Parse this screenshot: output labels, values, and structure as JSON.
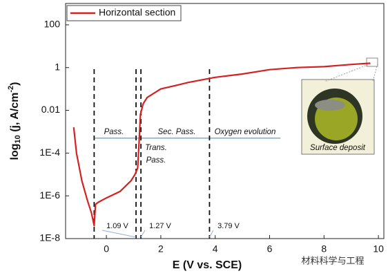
{
  "chart_data": {
    "type": "line",
    "xlabel": "E (V vs. SCE)",
    "ylabel": {
      "main": "log",
      "sub": "10",
      "mid": " (j, A/cm",
      "sup": "-2",
      "end": ")"
    },
    "xlim": [
      -1.5,
      10.2
    ],
    "xticks": [
      0,
      2,
      4,
      6,
      8,
      10
    ],
    "ylim": [
      1e-08,
      1000
    ],
    "log_y": true,
    "yticks": [
      {
        "value": 1e-08,
        "label": "1E-8"
      },
      {
        "value": 1e-06,
        "label": "1E-6"
      },
      {
        "value": 0.0001,
        "label": "1E-4"
      },
      0.01,
      1,
      100
    ],
    "legend": "top-left",
    "x": [
      -1.2,
      -1.1,
      -0.9,
      -0.7,
      -0.55,
      -0.45,
      -0.4,
      -0.3,
      0,
      0.5,
      0.9,
      1.05,
      1.15,
      1.2,
      1.25,
      1.35,
      1.5,
      2,
      2.5,
      3,
      4,
      5,
      6,
      7,
      8,
      9,
      9.7
    ],
    "series": [
      {
        "name": "Horizontal section",
        "color": "#d62020",
        "values": [
          0.0016,
          0.0001,
          5e-06,
          6.3e-07,
          1.6e-07,
          4e-08,
          4e-07,
          5e-07,
          8e-07,
          1.6e-06,
          5e-06,
          1e-05,
          2e-05,
          0.0003,
          0.0063,
          0.02,
          0.04,
          0.1,
          0.14,
          0.2,
          0.35,
          0.5,
          0.8,
          1,
          1.1,
          1.4,
          1.6
        ]
      }
    ],
    "vlines": [
      -0.45,
      1.09,
      1.27,
      3.79
    ],
    "vline_labels": [
      "1.09 V",
      "1.27 V",
      "3.79 V"
    ],
    "hline": {
      "y": 0.0005,
      "x": [
        -0.45,
        6.4
      ],
      "color": "#5b9bd5"
    },
    "annotations": [
      "Pass.",
      "Sec. Pass.",
      "Oxygen evolution",
      "Trans.",
      "Pass."
    ],
    "inset_caption": "Surface deposit",
    "watermark": "材料科学与工程"
  }
}
